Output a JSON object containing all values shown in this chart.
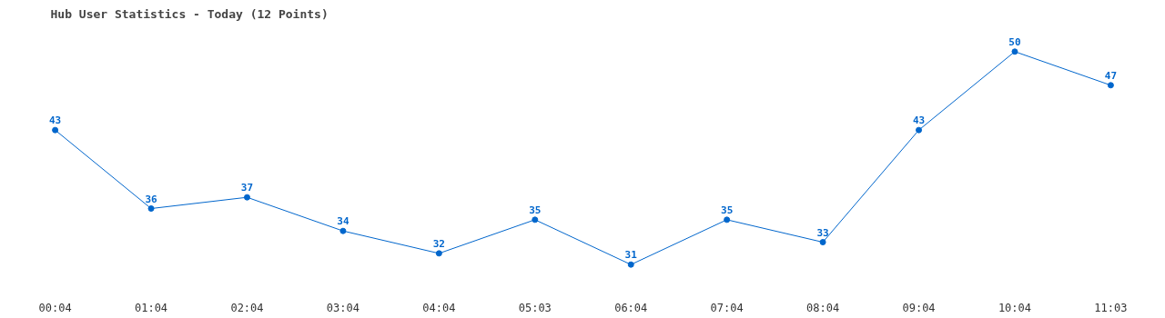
{
  "chart_data": {
    "type": "line",
    "title": "Hub User Statistics - Today (12 Points)",
    "categories": [
      "00:04",
      "01:04",
      "02:04",
      "03:04",
      "04:04",
      "05:03",
      "06:04",
      "07:04",
      "08:04",
      "09:04",
      "10:04",
      "11:03"
    ],
    "series": [
      {
        "color": "#0066cc",
        "values": [
          43,
          36,
          37,
          34,
          32,
          35,
          31,
          35,
          33,
          43,
          50,
          47
        ]
      }
    ],
    "data_labels": true,
    "marker": "circle",
    "line_style": "solid",
    "grid": false,
    "tick_labels": "x"
  }
}
